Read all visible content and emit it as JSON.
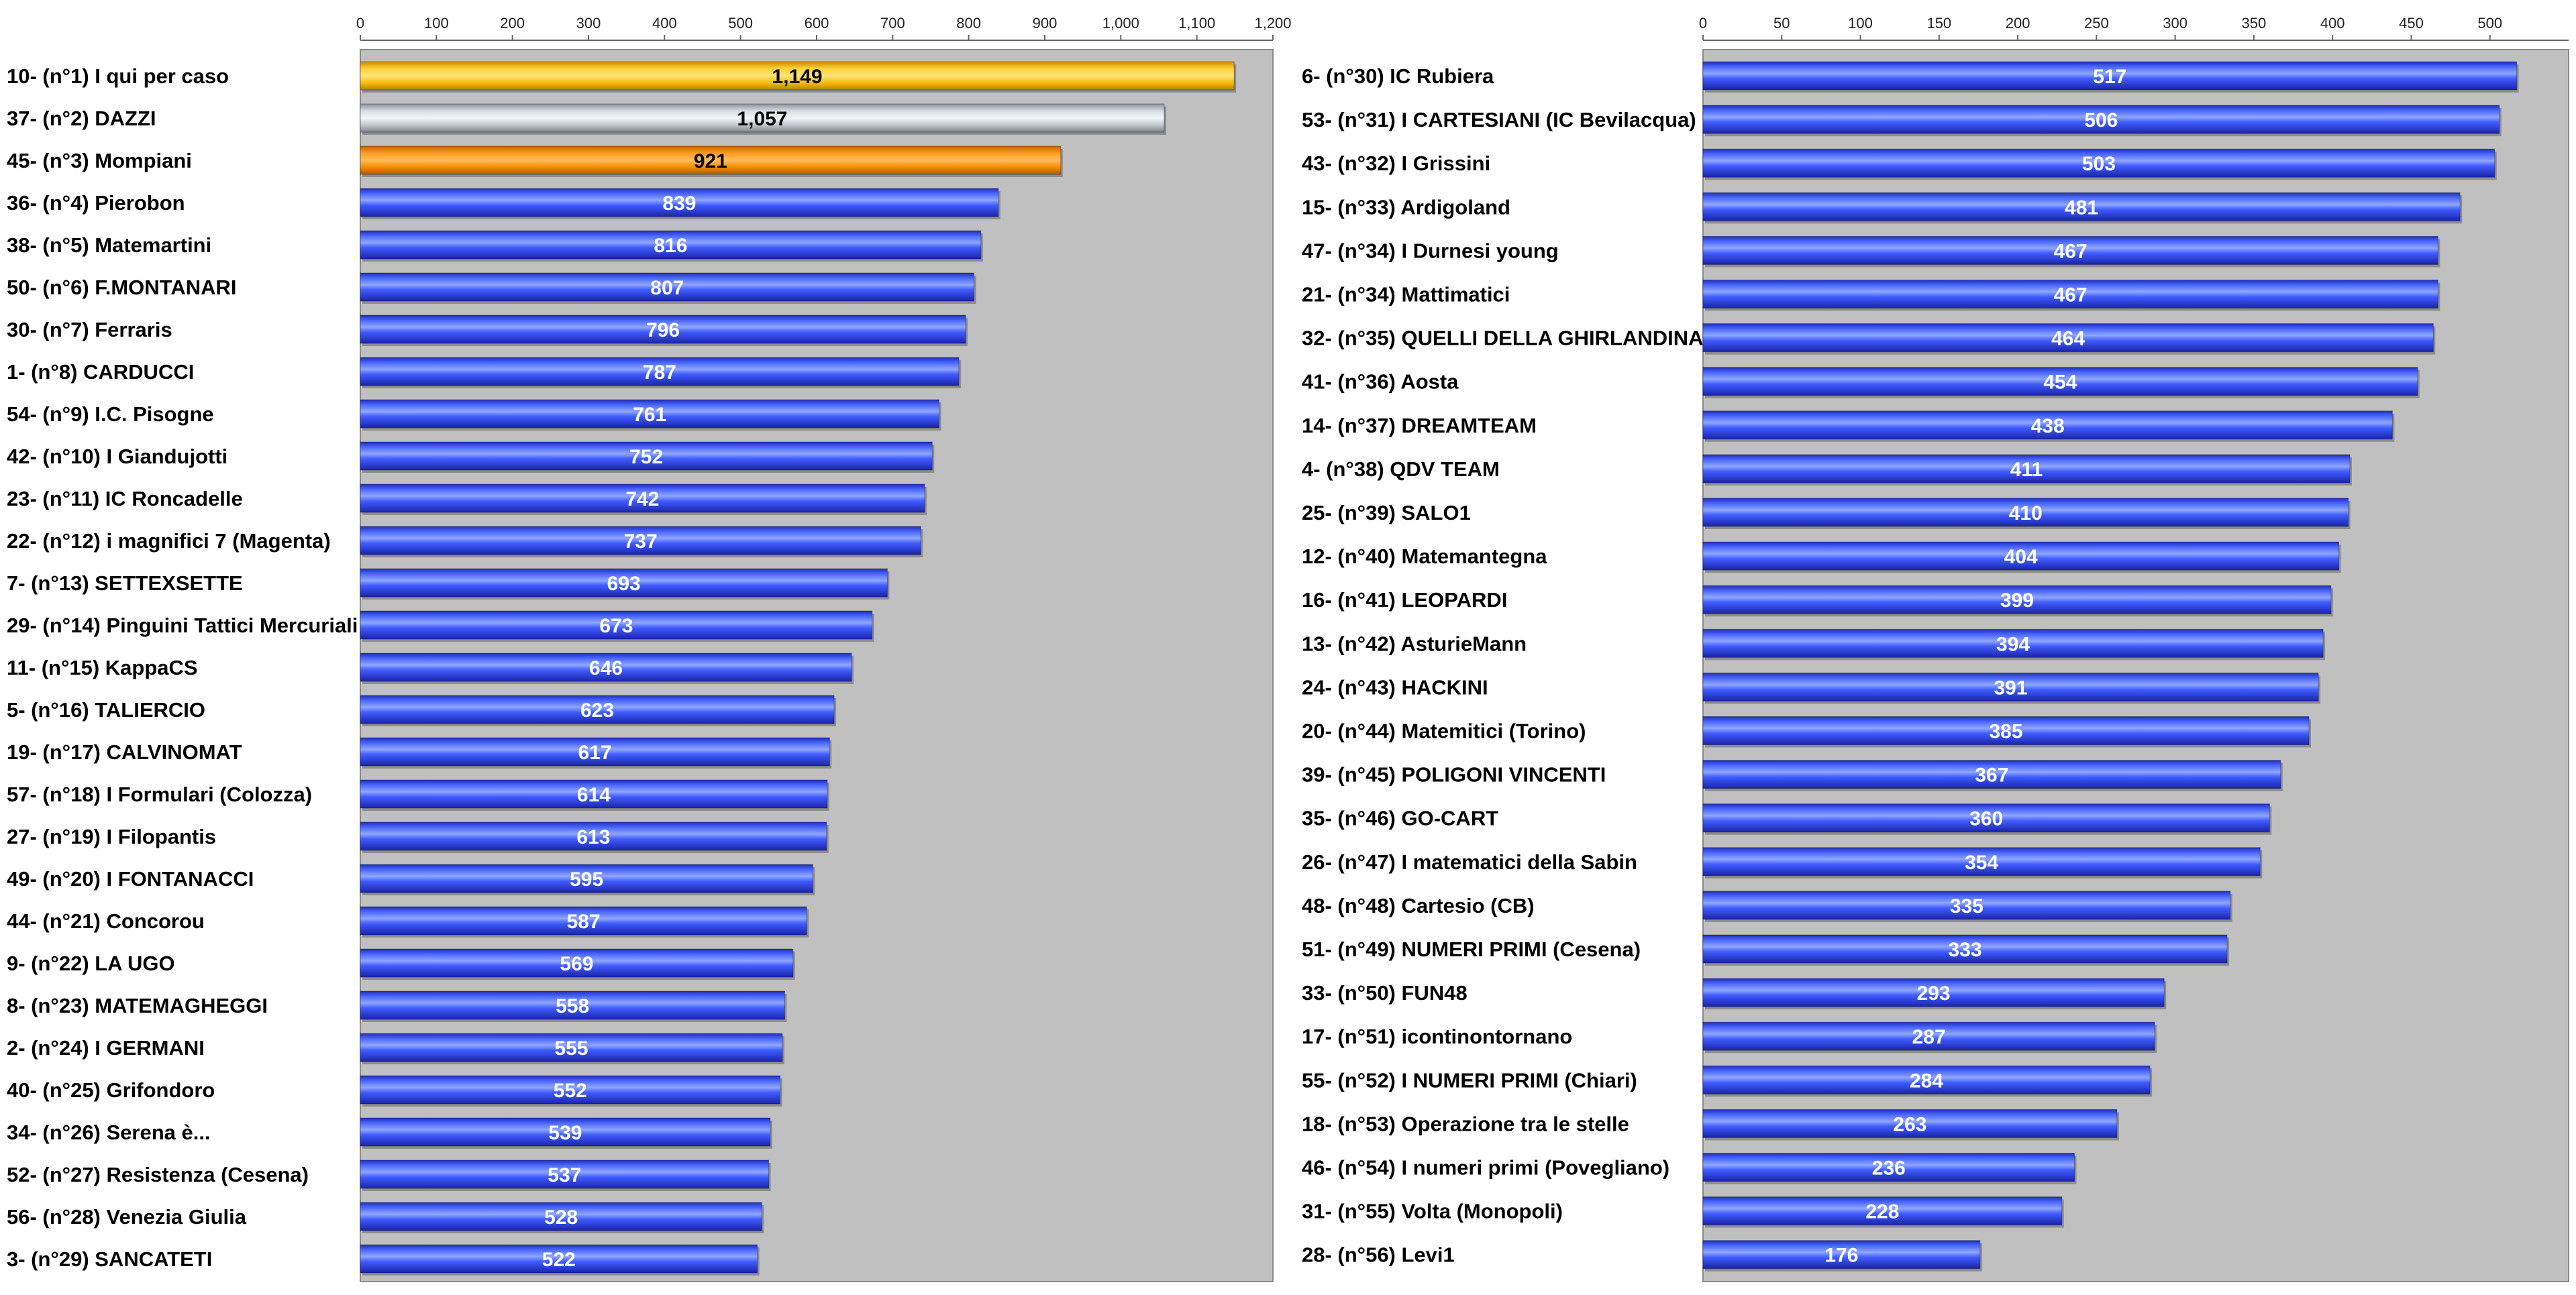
{
  "chart_data": [
    {
      "type": "bar",
      "orientation": "horizontal",
      "title": "",
      "xlabel": "",
      "ylabel": "",
      "xlim": [
        0,
        1200
      ],
      "ticks": [
        0,
        100,
        200,
        300,
        400,
        500,
        600,
        700,
        800,
        900,
        1000,
        1100,
        1200
      ],
      "tick_labels": [
        "0",
        "100",
        "200",
        "300",
        "400",
        "500",
        "600",
        "700",
        "800",
        "900",
        "1,000",
        "1,100",
        "1,200"
      ],
      "axis_position": "top",
      "grid": false,
      "background": "#c0c0c0",
      "categories": [
        "10- (n°1) I qui per caso",
        "37- (n°2) DAZZI",
        "45- (n°3) Mompiani",
        "36- (n°4) Pierobon",
        "38- (n°5) Matemartini",
        "50- (n°6) F.MONTANARI",
        "30- (n°7) Ferraris",
        "1- (n°8) CARDUCCI",
        "54- (n°9) I.C. Pisogne",
        "42- (n°10) I Giandujotti",
        "23- (n°11) IC Roncadelle",
        "22- (n°12) i magnifici 7 (Magenta)",
        "7- (n°13) SETTEXSETTE",
        "29- (n°14) Pinguini Tattici Mercuriali",
        "11- (n°15) KappaCS",
        "5- (n°16) TALIERCIO",
        "19- (n°17) CALVINOMAT",
        "57- (n°18) I Formulari (Colozza)",
        "27- (n°19) I Filopantis",
        "49- (n°20) I FONTANACCI",
        "44- (n°21) Concorou",
        "9- (n°22) LA UGO",
        "8- (n°23) MATEMAGHEGGI",
        "2- (n°24) I GERMANI",
        "40- (n°25) Grifondoro",
        "34- (n°26) Serena è...",
        "52- (n°27) Resistenza (Cesena)",
        "56- (n°28) Venezia Giulia",
        "3- (n°29) SANCATETI"
      ],
      "values": [
        1149,
        1057,
        921,
        839,
        816,
        807,
        796,
        787,
        761,
        752,
        742,
        737,
        693,
        673,
        646,
        623,
        617,
        614,
        613,
        595,
        587,
        569,
        558,
        555,
        552,
        539,
        537,
        528,
        522
      ],
      "value_labels": [
        "1,149",
        "1,057",
        "921",
        "839",
        "816",
        "807",
        "796",
        "787",
        "761",
        "752",
        "742",
        "737",
        "693",
        "673",
        "646",
        "623",
        "617",
        "614",
        "613",
        "595",
        "587",
        "569",
        "558",
        "555",
        "552",
        "539",
        "537",
        "528",
        "522"
      ],
      "bar_colors": [
        "gold",
        "silver",
        "bronze",
        "blue",
        "blue",
        "blue",
        "blue",
        "blue",
        "blue",
        "blue",
        "blue",
        "blue",
        "blue",
        "blue",
        "blue",
        "blue",
        "blue",
        "blue",
        "blue",
        "blue",
        "blue",
        "blue",
        "blue",
        "blue",
        "blue",
        "blue",
        "blue",
        "blue",
        "blue"
      ]
    },
    {
      "type": "bar",
      "orientation": "horizontal",
      "title": "",
      "xlabel": "",
      "ylabel": "",
      "xlim": [
        0,
        550
      ],
      "ticks": [
        0,
        50,
        100,
        150,
        200,
        250,
        300,
        350,
        400,
        450,
        500
      ],
      "tick_labels": [
        "0",
        "50",
        "100",
        "150",
        "200",
        "250",
        "300",
        "350",
        "400",
        "450",
        "500"
      ],
      "axis_position": "top",
      "grid": false,
      "background": "#c0c0c0",
      "categories": [
        "6- (n°30) IC Rubiera",
        "53- (n°31) I CARTESIANI (IC Bevilacqua)",
        "43- (n°32) I Grissini",
        "15- (n°33) Ardigoland",
        "47- (n°34) I Durnesi young",
        "21- (n°34) Mattimatici",
        "32- (n°35) QUELLI DELLA GHIRLANDINA",
        "41- (n°36) Aosta",
        "14- (n°37) DREAMTEAM",
        "4- (n°38) QDV TEAM",
        "25- (n°39) SALO1",
        "12- (n°40) Matemantegna",
        "16- (n°41) LEOPARDI",
        "13- (n°42) AsturieMann",
        "24- (n°43) HACKINI",
        "20- (n°44) Matemitici (Torino)",
        "39- (n°45) POLIGONI VINCENTI",
        "35- (n°46) GO-CART",
        "26- (n°47) I matematici della Sabin",
        "48- (n°48) Cartesio (CB)",
        "51- (n°49) NUMERI PRIMI (Cesena)",
        "33- (n°50) FUN48",
        "17- (n°51) icontinontornano",
        "55- (n°52) I NUMERI PRIMI (Chiari)",
        "18- (n°53) Operazione tra le stelle",
        "46- (n°54) I numeri primi (Povegliano)",
        "31- (n°55) Volta (Monopoli)",
        "28- (n°56) Levi1"
      ],
      "values": [
        517,
        506,
        503,
        481,
        467,
        467,
        464,
        454,
        438,
        411,
        410,
        404,
        399,
        394,
        391,
        385,
        367,
        360,
        354,
        335,
        333,
        293,
        287,
        284,
        263,
        236,
        228,
        176
      ],
      "value_labels": [
        "517",
        "506",
        "503",
        "481",
        "467",
        "467",
        "464",
        "454",
        "438",
        "411",
        "410",
        "404",
        "399",
        "394",
        "391",
        "385",
        "367",
        "360",
        "354",
        "335",
        "333",
        "293",
        "287",
        "284",
        "263",
        "236",
        "228",
        "176"
      ],
      "bar_colors": [
        "blue",
        "blue",
        "blue",
        "blue",
        "blue",
        "blue",
        "blue",
        "blue",
        "blue",
        "blue",
        "blue",
        "blue",
        "blue",
        "blue",
        "blue",
        "blue",
        "blue",
        "blue",
        "blue",
        "blue",
        "blue",
        "blue",
        "blue",
        "blue",
        "blue",
        "blue",
        "blue",
        "blue"
      ]
    }
  ],
  "colors": {
    "plot_background": "#c0c0c0",
    "blue": "#2f4bff",
    "gold": "#f2b400",
    "silver": "#b8bcc4",
    "bronze": "#f08a00"
  }
}
